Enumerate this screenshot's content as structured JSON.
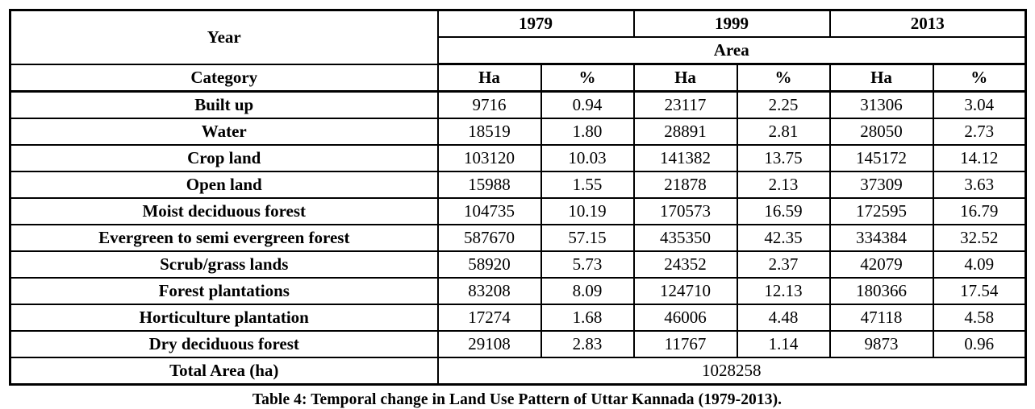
{
  "table": {
    "year_label": "Year",
    "area_label": "Area",
    "category_label": "Category",
    "years": [
      "1979",
      "1999",
      "2013"
    ],
    "unit_ha": "Ha",
    "unit_pct": "%",
    "rows": [
      {
        "category": "Built up",
        "values": [
          "9716",
          "0.94",
          "23117",
          "2.25",
          "31306",
          "3.04"
        ]
      },
      {
        "category": "Water",
        "values": [
          "18519",
          "1.80",
          "28891",
          "2.81",
          "28050",
          "2.73"
        ]
      },
      {
        "category": "Crop land",
        "values": [
          "103120",
          "10.03",
          "141382",
          "13.75",
          "145172",
          "14.12"
        ]
      },
      {
        "category": "Open land",
        "values": [
          "15988",
          "1.55",
          "21878",
          "2.13",
          "37309",
          "3.63"
        ]
      },
      {
        "category": "Moist deciduous forest",
        "values": [
          "104735",
          "10.19",
          "170573",
          "16.59",
          "172595",
          "16.79"
        ]
      },
      {
        "category": "Evergreen to semi evergreen forest",
        "values": [
          "587670",
          "57.15",
          "435350",
          "42.35",
          "334384",
          "32.52"
        ]
      },
      {
        "category": "Scrub/grass lands",
        "values": [
          "58920",
          "5.73",
          "24352",
          "2.37",
          "42079",
          "4.09"
        ]
      },
      {
        "category": "Forest plantations",
        "values": [
          "83208",
          "8.09",
          "124710",
          "12.13",
          "180366",
          "17.54"
        ]
      },
      {
        "category": "Horticulture plantation",
        "values": [
          "17274",
          "1.68",
          "46006",
          "4.48",
          "47118",
          "4.58"
        ]
      },
      {
        "category": "Dry deciduous forest",
        "values": [
          "29108",
          "2.83",
          "11767",
          "1.14",
          "9873",
          "0.96"
        ]
      }
    ],
    "total_label": "Total Area (ha)",
    "total_value": "1028258"
  },
  "caption": "Table 4: Temporal change in Land Use Pattern of Uttar Kannada (1979-2013).",
  "colors": {
    "text": "#000000",
    "background": "#ffffff",
    "border": "#000000"
  }
}
